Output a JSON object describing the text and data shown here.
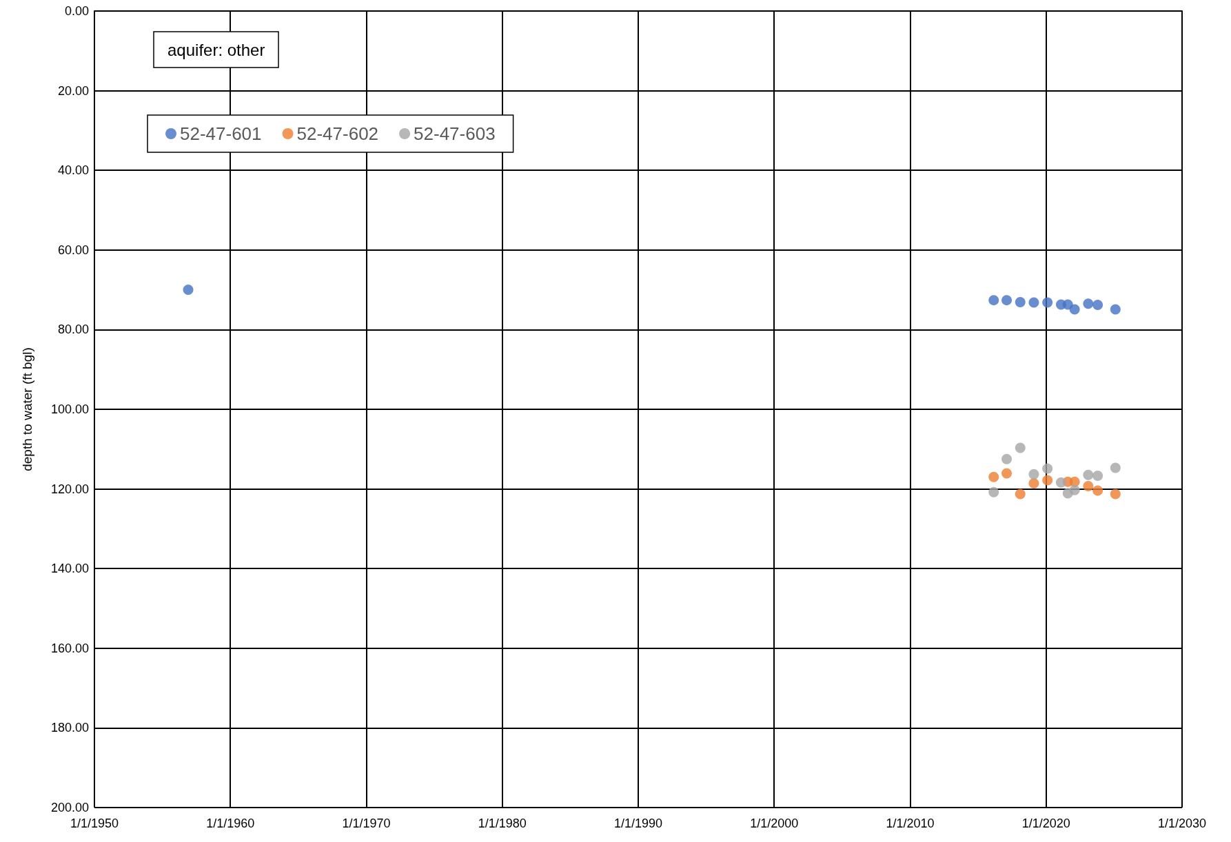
{
  "chart_data": {
    "type": "scatter",
    "ylabel": "depth to water (ft bgl)",
    "annotations": [
      "aquifer: other"
    ],
    "xlim": [
      "1950-01-01",
      "2030-01-01"
    ],
    "xticks": [
      {
        "value": "1950-01-01",
        "label": "1/1/1950"
      },
      {
        "value": "1960-01-01",
        "label": "1/1/1960"
      },
      {
        "value": "1970-01-01",
        "label": "1/1/1970"
      },
      {
        "value": "1980-01-01",
        "label": "1/1/1980"
      },
      {
        "value": "1990-01-01",
        "label": "1/1/1990"
      },
      {
        "value": "2000-01-01",
        "label": "1/1/2000"
      },
      {
        "value": "2010-01-01",
        "label": "1/1/2010"
      },
      {
        "value": "2020-01-01",
        "label": "1/1/2020"
      },
      {
        "value": "2030-01-01",
        "label": "1/1/2030"
      }
    ],
    "ylim": [
      200,
      0
    ],
    "yticks": [
      {
        "value": 0,
        "label": "0.00"
      },
      {
        "value": 20,
        "label": "20.00"
      },
      {
        "value": 40,
        "label": "40.00"
      },
      {
        "value": 60,
        "label": "60.00"
      },
      {
        "value": 80,
        "label": "80.00"
      },
      {
        "value": 100,
        "label": "100.00"
      },
      {
        "value": 120,
        "label": "120.00"
      },
      {
        "value": 140,
        "label": "140.00"
      },
      {
        "value": 160,
        "label": "160.00"
      },
      {
        "value": 180,
        "label": "180.00"
      },
      {
        "value": 200,
        "label": "200.00"
      }
    ],
    "grid": true,
    "legend": "top left",
    "marker": "circle",
    "series": [
      {
        "name": "52-47-601",
        "color": "#4472c4",
        "x": [
          "1956-11-24",
          "2016-02-24",
          "2017-02-06",
          "2018-02-06",
          "2019-02-06",
          "2020-02-06",
          "2021-02-06",
          "2021-08-07",
          "2022-02-06",
          "2023-02-06",
          "2023-10-19",
          "2025-02-06"
        ],
        "values": [
          70.0,
          72.6,
          72.6,
          73.1,
          73.2,
          73.2,
          73.7,
          73.7,
          74.9,
          73.5,
          73.8,
          74.9
        ]
      },
      {
        "name": "52-47-602",
        "color": "#ed7d31",
        "x": [
          "2016-02-24",
          "2017-02-06",
          "2018-02-06",
          "2019-02-06",
          "2020-02-06",
          "2021-08-07",
          "2022-02-06",
          "2023-02-06",
          "2023-10-19",
          "2025-02-06"
        ],
        "values": [
          117.0,
          116.1,
          121.3,
          118.6,
          117.8,
          118.2,
          118.2,
          119.3,
          120.4,
          121.3
        ]
      },
      {
        "name": "52-47-603",
        "color": "#a5a5a5",
        "x": [
          "2016-02-24",
          "2017-02-06",
          "2018-02-06",
          "2019-02-06",
          "2020-02-06",
          "2021-02-06",
          "2021-08-07",
          "2022-02-06",
          "2023-02-06",
          "2023-10-19",
          "2025-02-06"
        ],
        "values": [
          120.8,
          112.5,
          109.7,
          116.3,
          114.9,
          118.4,
          121.1,
          120.3,
          116.5,
          116.7,
          114.7
        ]
      }
    ]
  }
}
